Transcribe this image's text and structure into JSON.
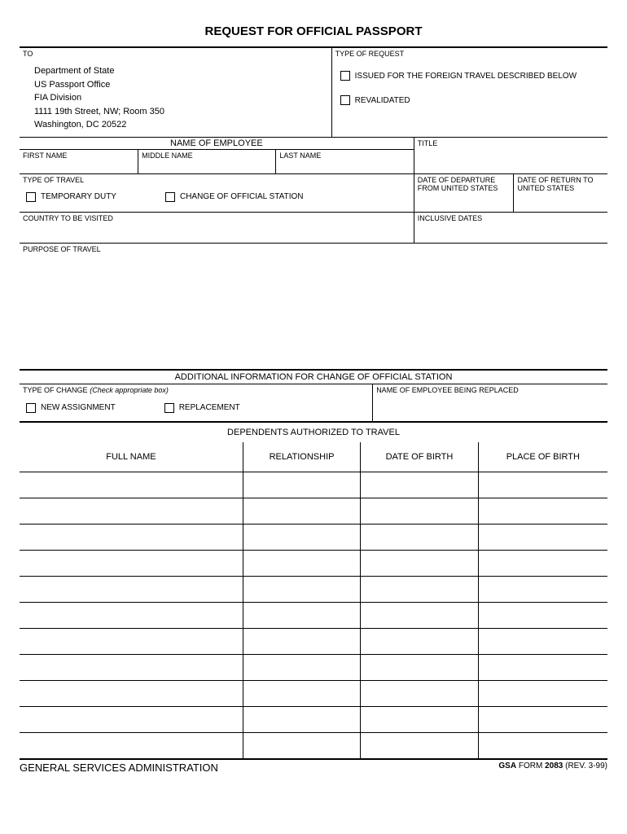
{
  "title": "REQUEST FOR OFFICIAL PASSPORT",
  "to": {
    "label": "TO",
    "lines": [
      "Department of State",
      "US Passport Office",
      "FIA Division",
      "1111 19th Street, NW; Room 350",
      "Washington, DC 20522"
    ]
  },
  "type_of_request": {
    "label": "TYPE OF REQUEST",
    "options": [
      "ISSUED FOR THE FOREIGN TRAVEL DESCRIBED BELOW",
      "REVALIDATED"
    ]
  },
  "name_section": {
    "header": "NAME OF EMPLOYEE",
    "first": "FIRST NAME",
    "middle": "MIDDLE NAME",
    "last": "LAST NAME",
    "title": "TITLE"
  },
  "travel": {
    "type_label": "TYPE OF TRAVEL",
    "temporary": "TEMPORARY DUTY",
    "change": "CHANGE OF OFFICIAL STATION",
    "departure": "DATE OF DEPARTURE FROM UNITED STATES",
    "return": "DATE OF RETURN TO UNITED STATES",
    "country": "COUNTRY TO BE VISITED",
    "inclusive": "INCLUSIVE DATES",
    "purpose": "PURPOSE OF TRAVEL"
  },
  "additional": {
    "header": "ADDITIONAL INFORMATION FOR CHANGE OF OFFICIAL STATION",
    "type_of_change": "TYPE OF CHANGE",
    "check_note": "(Check appropriate box)",
    "new_assignment": "NEW ASSIGNMENT",
    "replacement": "REPLACEMENT",
    "replaced": "NAME OF EMPLOYEE BEING REPLACED"
  },
  "dependents": {
    "header": "DEPENDENTS AUTHORIZED TO TRAVEL",
    "columns": [
      "FULL NAME",
      "RELATIONSHIP",
      "DATE OF BIRTH",
      "PLACE OF BIRTH"
    ],
    "col_widths": [
      "38%",
      "20%",
      "20%",
      "22%"
    ],
    "row_count": 11
  },
  "footer": {
    "left": "GENERAL SERVICES ADMINISTRATION",
    "right_prefix": "GSA",
    "right_form": "FORM",
    "right_number": "2083",
    "right_rev": "(REV. 3-99)"
  }
}
